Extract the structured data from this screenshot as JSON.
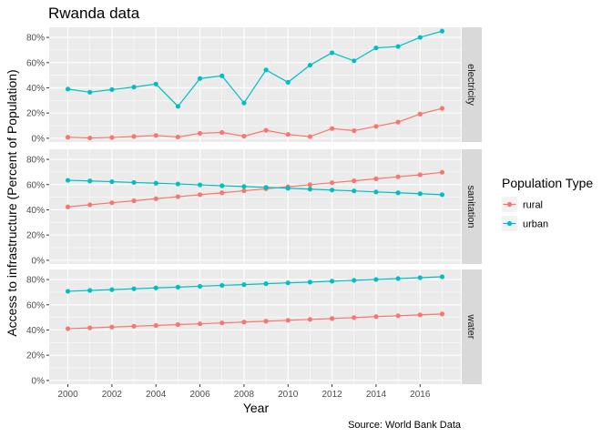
{
  "title": "Rwanda data",
  "caption": "Source: World Bank Data",
  "chart_data": {
    "type": "line",
    "title": "Rwanda data",
    "xlabel": "Year",
    "ylabel": "Access to infrastructure (Percent of Population)",
    "x": [
      2000,
      2001,
      2002,
      2003,
      2004,
      2005,
      2006,
      2007,
      2008,
      2009,
      2010,
      2011,
      2012,
      2013,
      2014,
      2015,
      2016,
      2017
    ],
    "x_ticks": [
      2000,
      2002,
      2004,
      2006,
      2008,
      2010,
      2012,
      2014,
      2016
    ],
    "x_tick_labels": [
      "2000",
      "2002",
      "2004",
      "2006",
      "2008",
      "2010",
      "2012",
      "2014",
      "2016"
    ],
    "xlim": [
      1999.15,
      2017.85
    ],
    "y_ticks": [
      0,
      20,
      40,
      60,
      80
    ],
    "y_tick_labels": [
      "0%",
      "20%",
      "40%",
      "60%",
      "80%"
    ],
    "ylim": [
      -3,
      88
    ],
    "grid": true,
    "legend": {
      "title": "Population Type",
      "position": "right",
      "entries": [
        "rural",
        "urban"
      ]
    },
    "colors": {
      "rural": "#F8766D",
      "urban": "#00BFC4"
    },
    "facets": [
      {
        "name": "electricity",
        "series": [
          {
            "name": "rural",
            "values": [
              0.8,
              0.2,
              0.6,
              1.4,
              2.2,
              1.0,
              3.9,
              4.6,
              1.6,
              6.3,
              3.0,
              1.3,
              7.7,
              6.0,
              9.4,
              12.8,
              19.2,
              23.7
            ]
          },
          {
            "name": "urban",
            "values": [
              39.0,
              36.5,
              38.6,
              40.6,
              43.0,
              25.3,
              47.4,
              49.5,
              28.0,
              54.2,
              44.4,
              58.0,
              67.8,
              61.4,
              71.7,
              72.8,
              80.0,
              85.0
            ]
          }
        ]
      },
      {
        "name": "sanitation",
        "series": [
          {
            "name": "rural",
            "values": [
              42.3,
              44.0,
              45.6,
              47.2,
              48.8,
              50.4,
              52.0,
              53.5,
              55.1,
              56.7,
              58.3,
              59.9,
              61.5,
              63.0,
              64.6,
              66.2,
              67.8,
              69.8
            ]
          },
          {
            "name": "urban",
            "values": [
              63.4,
              62.9,
              62.3,
              61.7,
              61.1,
              60.5,
              59.8,
              59.1,
              58.5,
              57.8,
              57.1,
              56.4,
              55.7,
              55.0,
              54.2,
              53.5,
              52.8,
              52.0
            ]
          }
        ]
      },
      {
        "name": "water",
        "series": [
          {
            "name": "rural",
            "values": [
              41.0,
              41.7,
              42.3,
              43.0,
              43.6,
              44.3,
              44.9,
              45.6,
              46.3,
              47.0,
              47.7,
              48.4,
              49.1,
              49.8,
              50.6,
              51.3,
              52.0,
              52.7
            ]
          },
          {
            "name": "urban",
            "values": [
              70.7,
              71.4,
              72.0,
              72.7,
              73.4,
              74.0,
              74.7,
              75.4,
              76.0,
              76.7,
              77.4,
              78.0,
              78.7,
              79.4,
              80.1,
              80.8,
              81.5,
              82.2
            ]
          }
        ]
      }
    ]
  }
}
